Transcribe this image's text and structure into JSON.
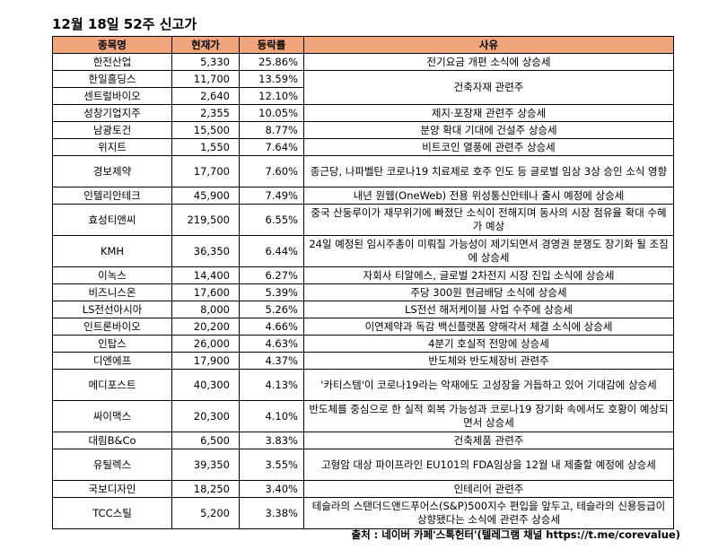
{
  "title": "12월 18일 52주 신고가",
  "headers": [
    "종목명",
    "현재가",
    "등락률",
    "사유"
  ],
  "rows": [
    {
      "name": "한전산업",
      "price": "5,330",
      "change": "25.86%",
      "reason": "전기요금 개편 소식에 상승세",
      "span": 1
    },
    {
      "name": "한일홀딩스",
      "price": "11,700",
      "change": "13.59%",
      "reason": "건축자재 관련주",
      "span": 2
    },
    {
      "name": "센트럴바이오",
      "price": "2,640",
      "change": "12.10%"
    },
    {
      "name": "성창기업지주",
      "price": "2,355",
      "change": "10.05%",
      "reason": "제지·포장재 관련주 상승세",
      "span": 1
    },
    {
      "name": "남광토건",
      "price": "15,500",
      "change": "8.77%",
      "reason": "분양 확대 기대에 건설주 상승세",
      "span": 1
    },
    {
      "name": "위지트",
      "price": "1,550",
      "change": "7.64%",
      "reason": "비트코인 열풍에 관련주 상승세",
      "span": 1
    },
    {
      "name": "경보제약",
      "price": "17,700",
      "change": "7.60%",
      "reason": "종근당, 나파벨탄 코로나19 치료제로 호주 인도 등 글로벌 임상 3상 승인 소식 영향",
      "span": 1,
      "tall": true
    },
    {
      "name": "인텔리안테크",
      "price": "45,900",
      "change": "7.49%",
      "reason": "내년 원웹(OneWeb) 전용 위성통신안테나 출시 예정에 상승세",
      "span": 1
    },
    {
      "name": "효성티앤씨",
      "price": "219,500",
      "change": "6.55%",
      "reason": "중국 산둥루이가 재무위기에 빠졌단 소식이 전해지며 동사의 시장 점유율 확대 수혜가 예상",
      "span": 1,
      "tall": true
    },
    {
      "name": "KMH",
      "price": "36,350",
      "change": "6.44%",
      "reason": "24일 예정된 임시주총이 미뤄질 가능성이 제기되면서 경영권 분쟁도 장기화 될 조짐에 상승세",
      "span": 1,
      "tall": true
    },
    {
      "name": "이녹스",
      "price": "14,400",
      "change": "6.27%",
      "reason": "자회사 티알에스, 글로벌 2차전지 시장 진입 소식에 상승세",
      "span": 1
    },
    {
      "name": "비즈니스온",
      "price": "17,600",
      "change": "5.39%",
      "reason": "주당 300원 현금배당 소식에 상승세",
      "span": 1
    },
    {
      "name": "LS전선아시아",
      "price": "8,000",
      "change": "5.26%",
      "reason": "LS전선 해저케이블 사업 수주에 상승세",
      "span": 1
    },
    {
      "name": "인트론바이오",
      "price": "20,200",
      "change": "4.66%",
      "reason": "이연제약과 독감 백신플랫폼 양해각서 체결 소식에 상승세",
      "span": 1
    },
    {
      "name": "인탑스",
      "price": "26,000",
      "change": "4.63%",
      "reason": "4분기 호실적 전망에 상승세",
      "span": 1
    },
    {
      "name": "디엔에프",
      "price": "17,900",
      "change": "4.37%",
      "reason": "반도체와 반도체장비 관련주",
      "span": 1
    },
    {
      "name": "메디포스트",
      "price": "40,300",
      "change": "4.13%",
      "reason": "'카티스템'이 코로나19라는 악재에도 고성장을 거듭하고 있어 기대감에 상승세",
      "span": 1,
      "tall": true
    },
    {
      "name": "싸이맥스",
      "price": "20,300",
      "change": "4.10%",
      "reason": "반도체를 중심으로 한 실적 회복 가능성과 코로나19 장기화 속에서도 호황이 예상되면서 상승세",
      "span": 1,
      "tall": true
    },
    {
      "name": "대림B&Co",
      "price": "6,500",
      "change": "3.83%",
      "reason": "건축제품 관련주",
      "span": 1
    },
    {
      "name": "유틸렉스",
      "price": "39,350",
      "change": "3.55%",
      "reason": "고형암 대상 파이프라인 EU101의 FDA임상을 12월 내 제출할 예정에 상승세",
      "span": 1,
      "tall": true
    },
    {
      "name": "국보디자인",
      "price": "18,250",
      "change": "3.40%",
      "reason": "인테리어 관련주",
      "span": 1
    },
    {
      "name": "TCC스틸",
      "price": "5,200",
      "change": "3.38%",
      "reason": "테슬라의 스탠더드앤드푸어스(S&P)500지수 편입을 앞두고, 테슬라의 신용등급이 상향됐다는 소식에 관련주 상승세",
      "span": 1,
      "tall": true
    }
  ],
  "source": "출처 : 네이버 카페'스톡헌터'(텔레그램 채널 https://t.me/corevalue)"
}
